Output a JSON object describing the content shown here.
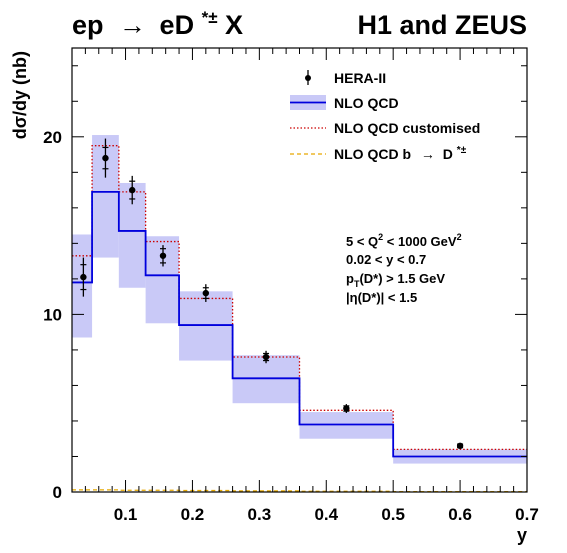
{
  "chart_data": {
    "type": "histogram",
    "title_left": {
      "base": "ep",
      "arrow": "→",
      "d": "eD",
      "sup": "*±",
      "end": "X"
    },
    "title_right": "H1 and ZEUS",
    "xlabel": "y",
    "ylabel": "dσ/dy (nb)",
    "xlim": [
      0.02,
      0.7
    ],
    "ylim": [
      0,
      25
    ],
    "x_ticks": [
      {
        "value": 0.1,
        "label": "0.1"
      },
      {
        "value": 0.2,
        "label": "0.2"
      },
      {
        "value": 0.3,
        "label": "0.3"
      },
      {
        "value": 0.4,
        "label": "0.4"
      },
      {
        "value": 0.5,
        "label": "0.5"
      },
      {
        "value": 0.6,
        "label": "0.6"
      },
      {
        "value": 0.7,
        "label": "0.7"
      }
    ],
    "y_ticks": [
      {
        "value": 0,
        "label": "0"
      },
      {
        "value": 10,
        "label": "10"
      },
      {
        "value": 20,
        "label": "20"
      }
    ],
    "bin_edges": [
      0.02,
      0.05,
      0.09,
      0.13,
      0.18,
      0.26,
      0.36,
      0.5,
      0.7
    ],
    "series": [
      {
        "name": "HERA-II",
        "kind": "points",
        "color": "#000000",
        "x": [
          0.037,
          0.07,
          0.11,
          0.156,
          0.22,
          0.31,
          0.43,
          0.6
        ],
        "y": [
          12.1,
          18.8,
          17.0,
          13.3,
          11.2,
          7.6,
          4.7,
          2.6
        ],
        "err_stat": [
          0.7,
          0.6,
          0.5,
          0.4,
          0.3,
          0.2,
          0.15,
          0.1
        ],
        "err_tot": [
          1.1,
          1.1,
          0.8,
          0.6,
          0.5,
          0.35,
          0.25,
          0.15
        ]
      },
      {
        "name": "NLO QCD",
        "kind": "step_band",
        "color": "#0000dd",
        "band_color": "#c9c9f7",
        "values": [
          11.8,
          16.9,
          14.7,
          12.2,
          9.4,
          6.4,
          3.8,
          2.0
        ],
        "band_low": [
          8.7,
          13.2,
          11.5,
          9.5,
          7.4,
          5.0,
          3.0,
          1.6
        ],
        "band_high": [
          14.5,
          20.1,
          17.4,
          14.4,
          11.3,
          7.7,
          4.5,
          2.4
        ]
      },
      {
        "name": "NLO QCD customised",
        "kind": "step",
        "color": "#cc0000",
        "dash": "dotted",
        "values": [
          13.3,
          19.5,
          16.9,
          14.1,
          10.9,
          7.6,
          4.6,
          2.4
        ]
      },
      {
        "name": "NLO QCD b",
        "label_arrow": "→",
        "label_end": "D",
        "label_sup": "*±",
        "kind": "step",
        "color": "#e6a800",
        "dash": "dashed",
        "values": [
          0.12,
          0.12,
          0.1,
          0.1,
          0.08,
          0.06,
          0.04,
          0.02
        ]
      }
    ],
    "legend_position": "top-right",
    "annotations": {
      "q2_base": "5 < Q",
      "q2_sup": "2",
      "q2_end": " < 1000 GeV",
      "q2_sup2": "2",
      "y_cut": "0.02 < y < 0.7",
      "pt_base": "p",
      "pt_sub": "T",
      "pt_end": "(D*) > 1.5 GeV",
      "eta": "|η(D*)| < 1.5"
    }
  }
}
